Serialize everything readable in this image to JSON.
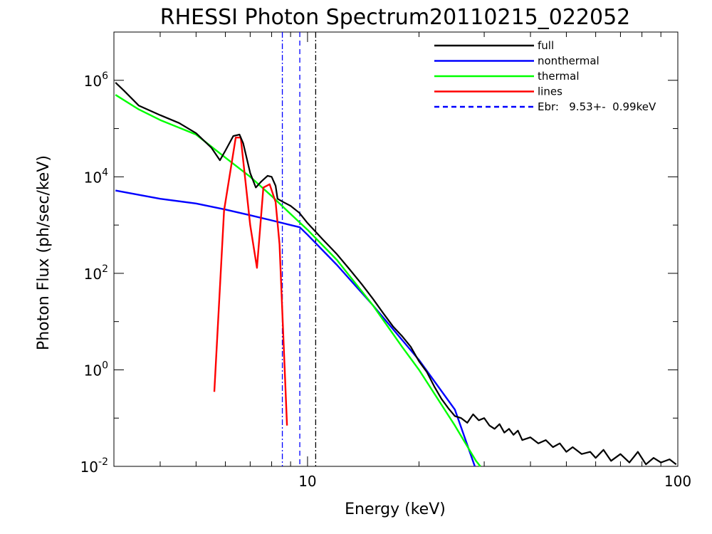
{
  "chart_data": {
    "type": "line",
    "title": "RHESSI Photon Spectrum20110215_022052",
    "xlabel": "Energy (keV)",
    "ylabel": "Photon Flux (ph/sec/keV)",
    "x_scale": "log",
    "y_scale": "log",
    "xlim": [
      3,
      100
    ],
    "ylim": [
      0.01,
      10000000
    ],
    "x_ticks": [
      {
        "value": 10,
        "label": "10"
      },
      {
        "value": 100,
        "label": "100"
      }
    ],
    "y_ticks": [
      {
        "value": 0.01,
        "base": "10",
        "exp": "-2"
      },
      {
        "value": 1,
        "base": "10",
        "exp": "0"
      },
      {
        "value": 100,
        "base": "10",
        "exp": "2"
      },
      {
        "value": 10000,
        "base": "10",
        "exp": "4"
      },
      {
        "value": 1000000,
        "base": "10",
        "exp": "6"
      }
    ],
    "grid": false,
    "legend_position": "top-right",
    "legend": [
      {
        "label": "full",
        "color": "#000000",
        "style": "solid"
      },
      {
        "label": "nonthermal",
        "color": "#0000ff",
        "style": "solid"
      },
      {
        "label": "thermal",
        "color": "#00ff00",
        "style": "solid"
      },
      {
        "label": "lines",
        "color": "#ff0000",
        "style": "solid"
      },
      {
        "label": "Ebr:   9.53+-  0.99keV",
        "color": "#0000ff",
        "style": "dashed"
      }
    ],
    "vlines": [
      {
        "x": 8.55,
        "color": "#0000ff",
        "style": "dashdot"
      },
      {
        "x": 9.53,
        "color": "#0000ff",
        "style": "dashed"
      },
      {
        "x": 10.52,
        "color": "#000000",
        "style": "dashdot"
      }
    ],
    "series": [
      {
        "name": "full",
        "color": "#000000",
        "points": [
          [
            3.03,
            900000
          ],
          [
            3.2,
            600000
          ],
          [
            3.5,
            300000
          ],
          [
            4.0,
            190000
          ],
          [
            4.5,
            130000
          ],
          [
            5.0,
            80000
          ],
          [
            5.5,
            40000
          ],
          [
            5.8,
            22000
          ],
          [
            6.0,
            35000
          ],
          [
            6.3,
            70000
          ],
          [
            6.55,
            75000
          ],
          [
            6.7,
            50000
          ],
          [
            7.0,
            12000
          ],
          [
            7.25,
            6000
          ],
          [
            7.5,
            8000
          ],
          [
            7.8,
            10500
          ],
          [
            8.0,
            10000
          ],
          [
            8.2,
            6500
          ],
          [
            8.3,
            3500
          ],
          [
            8.6,
            3000
          ],
          [
            9.0,
            2500
          ],
          [
            9.5,
            1800
          ],
          [
            10,
            1100
          ],
          [
            11,
            500
          ],
          [
            12,
            250
          ],
          [
            13,
            120
          ],
          [
            14,
            60
          ],
          [
            15,
            30
          ],
          [
            16,
            15
          ],
          [
            17,
            8
          ],
          [
            18,
            5
          ],
          [
            19,
            3
          ],
          [
            20,
            1.5
          ],
          [
            21,
            0.9
          ],
          [
            22,
            0.45
          ],
          [
            23,
            0.25
          ],
          [
            24,
            0.16
          ],
          [
            25,
            0.11
          ],
          [
            26,
            0.1
          ],
          [
            27,
            0.08
          ],
          [
            28,
            0.12
          ],
          [
            29,
            0.09
          ],
          [
            30,
            0.1
          ],
          [
            31,
            0.07
          ],
          [
            32,
            0.06
          ],
          [
            33,
            0.075
          ],
          [
            34,
            0.05
          ],
          [
            35,
            0.06
          ],
          [
            36,
            0.045
          ],
          [
            37,
            0.055
          ],
          [
            38,
            0.035
          ],
          [
            40,
            0.04
          ],
          [
            42,
            0.03
          ],
          [
            44,
            0.035
          ],
          [
            46,
            0.025
          ],
          [
            48,
            0.03
          ],
          [
            50,
            0.02
          ],
          [
            52,
            0.025
          ],
          [
            55,
            0.018
          ],
          [
            58,
            0.02
          ],
          [
            60,
            0.015
          ],
          [
            63,
            0.022
          ],
          [
            66,
            0.013
          ],
          [
            70,
            0.018
          ],
          [
            74,
            0.012
          ],
          [
            78,
            0.02
          ],
          [
            82,
            0.011
          ],
          [
            86,
            0.015
          ],
          [
            90,
            0.012
          ],
          [
            95,
            0.014
          ],
          [
            99,
            0.011
          ]
        ]
      },
      {
        "name": "nonthermal",
        "color": "#0000ff",
        "points": [
          [
            3.03,
            5200
          ],
          [
            4,
            3500
          ],
          [
            5,
            2800
          ],
          [
            6,
            2100
          ],
          [
            7,
            1600
          ],
          [
            8,
            1250
          ],
          [
            9.0,
            1000
          ],
          [
            9.53,
            900
          ],
          [
            10,
            630
          ],
          [
            12,
            150
          ],
          [
            15,
            22
          ],
          [
            20,
            1.6
          ],
          [
            25,
            0.15
          ],
          [
            28.3,
            0.01
          ]
        ]
      },
      {
        "name": "thermal",
        "color": "#00ff00",
        "points": [
          [
            3.03,
            500000
          ],
          [
            3.5,
            250000
          ],
          [
            4,
            150000
          ],
          [
            5,
            75000
          ],
          [
            6,
            25000
          ],
          [
            7,
            10000
          ],
          [
            8,
            4000
          ],
          [
            9,
            1700
          ],
          [
            10,
            800
          ],
          [
            12,
            190
          ],
          [
            15,
            22
          ],
          [
            18,
            3
          ],
          [
            20,
            1
          ],
          [
            25,
            0.07
          ],
          [
            28.5,
            0.013
          ],
          [
            29.3,
            0.01
          ]
        ]
      },
      {
        "name": "lines",
        "color": "#ff0000",
        "points": [
          [
            5.6,
            0.35
          ],
          [
            5.95,
            2000
          ],
          [
            6.4,
            65000
          ],
          [
            6.6,
            65000
          ],
          [
            7.0,
            1000
          ],
          [
            7.3,
            130
          ],
          [
            7.6,
            6000
          ],
          [
            7.9,
            7000
          ],
          [
            8.2,
            3000
          ],
          [
            8.4,
            400
          ],
          [
            8.8,
            0.07
          ]
        ]
      }
    ]
  }
}
